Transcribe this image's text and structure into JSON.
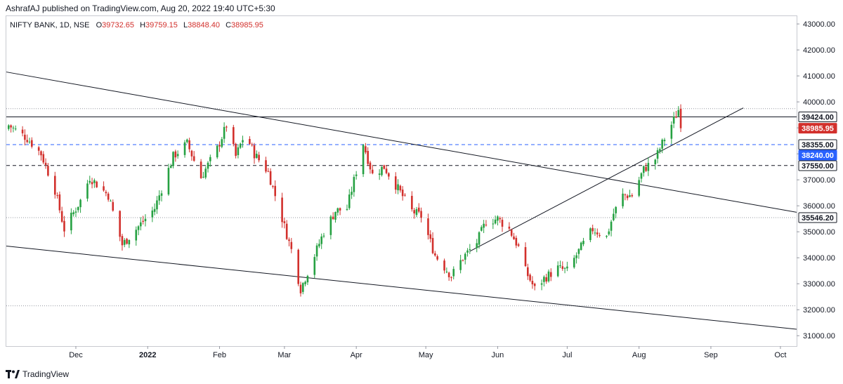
{
  "header": {
    "publisher_line": "AshrafAJ published on TradingView.com, Aug 20, 2022 19:40 UTC+5:30"
  },
  "legend": {
    "symbol": "NIFTY BANK, 1D, NSE",
    "open_key": "O",
    "open": "39732.65",
    "high_key": "H",
    "high": "39759.15",
    "low_key": "L",
    "low": "38848.40",
    "close_key": "C",
    "close": "38985.95"
  },
  "footer": {
    "brand": "TradingView",
    "logo_icon": "tradingview-logo-icon"
  },
  "colors": {
    "up": "#26a142",
    "down": "#d2302c",
    "accent_blue": "#2962ff",
    "line": "#131722"
  },
  "chart_data": {
    "type": "candlestick",
    "instrument": "NIFTY BANK, 1D, NSE",
    "ylim": [
      30600,
      43300
    ],
    "yticks": [
      31000,
      32000,
      33000,
      34000,
      35000,
      36000,
      37000,
      38000,
      39000,
      40000,
      41000,
      42000,
      43000
    ],
    "ytick_labels": [
      "31000.00",
      "32000.00",
      "33000.00",
      "34000.00",
      "35000.00",
      "36000.00",
      "37000.00",
      "38000.00",
      "39000.00",
      "40000.00",
      "41000.00",
      "42000.00",
      "43000.00"
    ],
    "x_start": "2021-11-01",
    "x_end": "2022-10-08",
    "xticks": [
      {
        "label": "Dec",
        "date": "2021-12-01"
      },
      {
        "label": "2022",
        "date": "2022-01-01",
        "bold": true
      },
      {
        "label": "Feb",
        "date": "2022-02-01"
      },
      {
        "label": "Mar",
        "date": "2022-03-01"
      },
      {
        "label": "Apr",
        "date": "2022-04-01"
      },
      {
        "label": "May",
        "date": "2022-05-01"
      },
      {
        "label": "Jun",
        "date": "2022-06-01"
      },
      {
        "label": "Jul",
        "date": "2022-07-01"
      },
      {
        "label": "Aug",
        "date": "2022-08-01"
      },
      {
        "label": "Sep",
        "date": "2022-09-01"
      },
      {
        "label": "Oct",
        "date": "2022-10-01"
      }
    ],
    "price_badges": [
      {
        "label": "39424.00",
        "value": 39424,
        "style": "dark"
      },
      {
        "label": "38985.95",
        "value": 38985.95,
        "style": "red"
      },
      {
        "label": "38355.00",
        "value": 38355,
        "style": "dark"
      },
      {
        "label": "38240.00",
        "value": 38240,
        "style": "blue"
      },
      {
        "label": "37550.00",
        "value": 37550,
        "style": "dark"
      },
      {
        "label": "35546.20",
        "value": 35546.2,
        "style": "dark"
      }
    ],
    "horizontal_lines": [
      {
        "value": 39424,
        "style": "solid",
        "color": "#131722"
      },
      {
        "value": 39740,
        "style": "dotted",
        "color": "#9598a1"
      },
      {
        "value": 38355,
        "style": "dashed",
        "color": "#2962ff"
      },
      {
        "value": 37550,
        "style": "dashed",
        "color": "#131722"
      },
      {
        "value": 35546.2,
        "style": "dotted",
        "color": "#9598a1"
      },
      {
        "value": 32150,
        "style": "dotted",
        "color": "#9598a1"
      }
    ],
    "trend_lines": [
      {
        "name": "upper-falling",
        "from": {
          "date": "2021-11-01",
          "value": 41150
        },
        "to": {
          "date": "2022-10-08",
          "value": 35750
        }
      },
      {
        "name": "lower-falling",
        "from": {
          "date": "2021-11-01",
          "value": 34450
        },
        "to": {
          "date": "2022-10-08",
          "value": 31250
        }
      },
      {
        "name": "rising",
        "from": {
          "date": "2022-05-20",
          "value": 34250
        },
        "to": {
          "date": "2022-09-15",
          "value": 39770
        }
      }
    ],
    "anchors": [
      {
        "date": "2021-11-02",
        "value": 39100
      },
      {
        "date": "2021-11-10",
        "value": 38600
      },
      {
        "date": "2021-11-16",
        "value": 38000
      },
      {
        "date": "2021-11-22",
        "value": 36600
      },
      {
        "date": "2021-11-26",
        "value": 35100
      },
      {
        "date": "2021-12-03",
        "value": 36200
      },
      {
        "date": "2021-12-07",
        "value": 37100
      },
      {
        "date": "2021-12-15",
        "value": 36400
      },
      {
        "date": "2021-12-21",
        "value": 34500
      },
      {
        "date": "2021-12-28",
        "value": 35200
      },
      {
        "date": "2022-01-04",
        "value": 35900
      },
      {
        "date": "2022-01-12",
        "value": 37900
      },
      {
        "date": "2022-01-18",
        "value": 38400
      },
      {
        "date": "2022-01-24",
        "value": 37100
      },
      {
        "date": "2022-01-31",
        "value": 38200
      },
      {
        "date": "2022-02-04",
        "value": 39100
      },
      {
        "date": "2022-02-08",
        "value": 37900
      },
      {
        "date": "2022-02-12",
        "value": 38800
      },
      {
        "date": "2022-02-16",
        "value": 38000
      },
      {
        "date": "2022-02-22",
        "value": 37300
      },
      {
        "date": "2022-02-28",
        "value": 35500
      },
      {
        "date": "2022-03-04",
        "value": 34300
      },
      {
        "date": "2022-03-08",
        "value": 32800
      },
      {
        "date": "2022-03-14",
        "value": 34100
      },
      {
        "date": "2022-03-18",
        "value": 35000
      },
      {
        "date": "2022-03-23",
        "value": 35800
      },
      {
        "date": "2022-03-28",
        "value": 35900
      },
      {
        "date": "2022-04-04",
        "value": 38400
      },
      {
        "date": "2022-04-08",
        "value": 37200
      },
      {
        "date": "2022-04-13",
        "value": 37500
      },
      {
        "date": "2022-04-18",
        "value": 36800
      },
      {
        "date": "2022-04-25",
        "value": 35800
      },
      {
        "date": "2022-04-29",
        "value": 35600
      },
      {
        "date": "2022-05-05",
        "value": 34100
      },
      {
        "date": "2022-05-12",
        "value": 33300
      },
      {
        "date": "2022-05-17",
        "value": 34000
      },
      {
        "date": "2022-05-23",
        "value": 34600
      },
      {
        "date": "2022-05-27",
        "value": 35400
      },
      {
        "date": "2022-06-01",
        "value": 35500
      },
      {
        "date": "2022-06-06",
        "value": 35100
      },
      {
        "date": "2022-06-10",
        "value": 34400
      },
      {
        "date": "2022-06-13",
        "value": 33500
      },
      {
        "date": "2022-06-17",
        "value": 32800
      },
      {
        "date": "2022-06-21",
        "value": 33200
      },
      {
        "date": "2022-06-27",
        "value": 33600
      },
      {
        "date": "2022-07-01",
        "value": 33500
      },
      {
        "date": "2022-07-07",
        "value": 34400
      },
      {
        "date": "2022-07-12",
        "value": 35100
      },
      {
        "date": "2022-07-18",
        "value": 34800
      },
      {
        "date": "2022-07-21",
        "value": 35700
      },
      {
        "date": "2022-07-25",
        "value": 36400
      },
      {
        "date": "2022-07-29",
        "value": 36400
      },
      {
        "date": "2022-08-03",
        "value": 37400
      },
      {
        "date": "2022-08-08",
        "value": 37800
      },
      {
        "date": "2022-08-12",
        "value": 38600
      },
      {
        "date": "2022-08-16",
        "value": 39300
      },
      {
        "date": "2022-08-18",
        "value": 39700
      },
      {
        "date": "2022-08-19",
        "value": 38986
      }
    ]
  }
}
